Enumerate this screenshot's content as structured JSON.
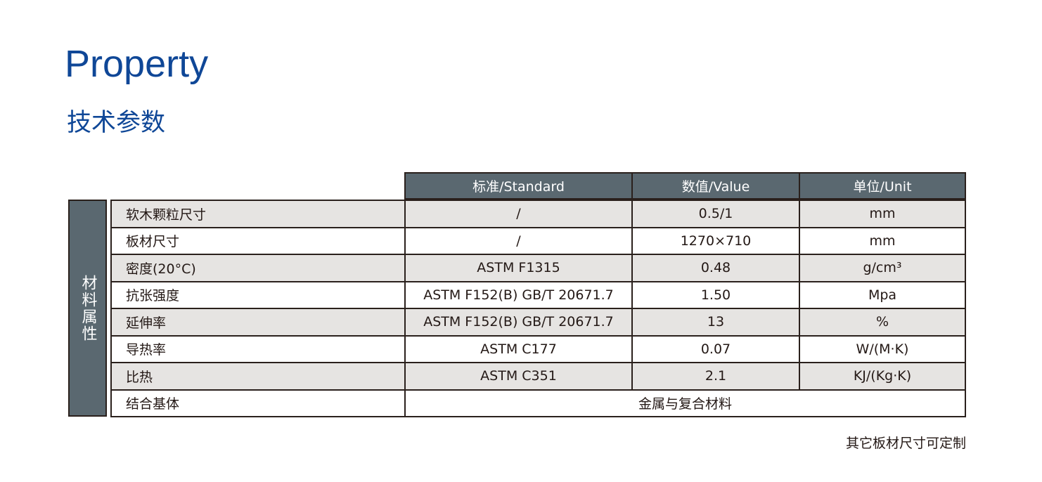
{
  "title": "Property",
  "subtitle": "技术参数",
  "headers": [
    "标准/Standard",
    "数值/Value",
    "单位/Unit"
  ],
  "side_label": "材料属性",
  "rows": [
    {
      "label": "软木颗粒尺寸",
      "standard": "/",
      "value": "0.5/1",
      "unit": "mm"
    },
    {
      "label": "板材尺寸",
      "standard": "/",
      "value": "1270×710",
      "unit": "mm"
    },
    {
      "label": "密度(20°C)",
      "standard": "ASTM F1315",
      "value": "0.48",
      "unit": "g/cm³"
    },
    {
      "label": "抗张强度",
      "standard": "ASTM F152(B)  GB/T 20671.7",
      "value": "1.50",
      "unit": "Mpa"
    },
    {
      "label": "延伸率",
      "standard": "ASTM F152(B)  GB/T 20671.7",
      "value": "13",
      "unit": "%"
    },
    {
      "label": "导热率",
      "standard": "ASTM C177",
      "value": "0.07",
      "unit": "W/(M·K)"
    },
    {
      "label": "比热",
      "standard": "ASTM C351",
      "value": "2.1",
      "unit": "KJ/(Kg·K)"
    }
  ],
  "last_row": {
    "label": "结合基体",
    "value": "金属与复合材料"
  },
  "note": "其它板材尺寸可定制",
  "colors": {
    "title": "#0f4797",
    "header_bg": "#5a6870",
    "border": "#2a201c",
    "shaded_row": "#e6e4e2"
  }
}
